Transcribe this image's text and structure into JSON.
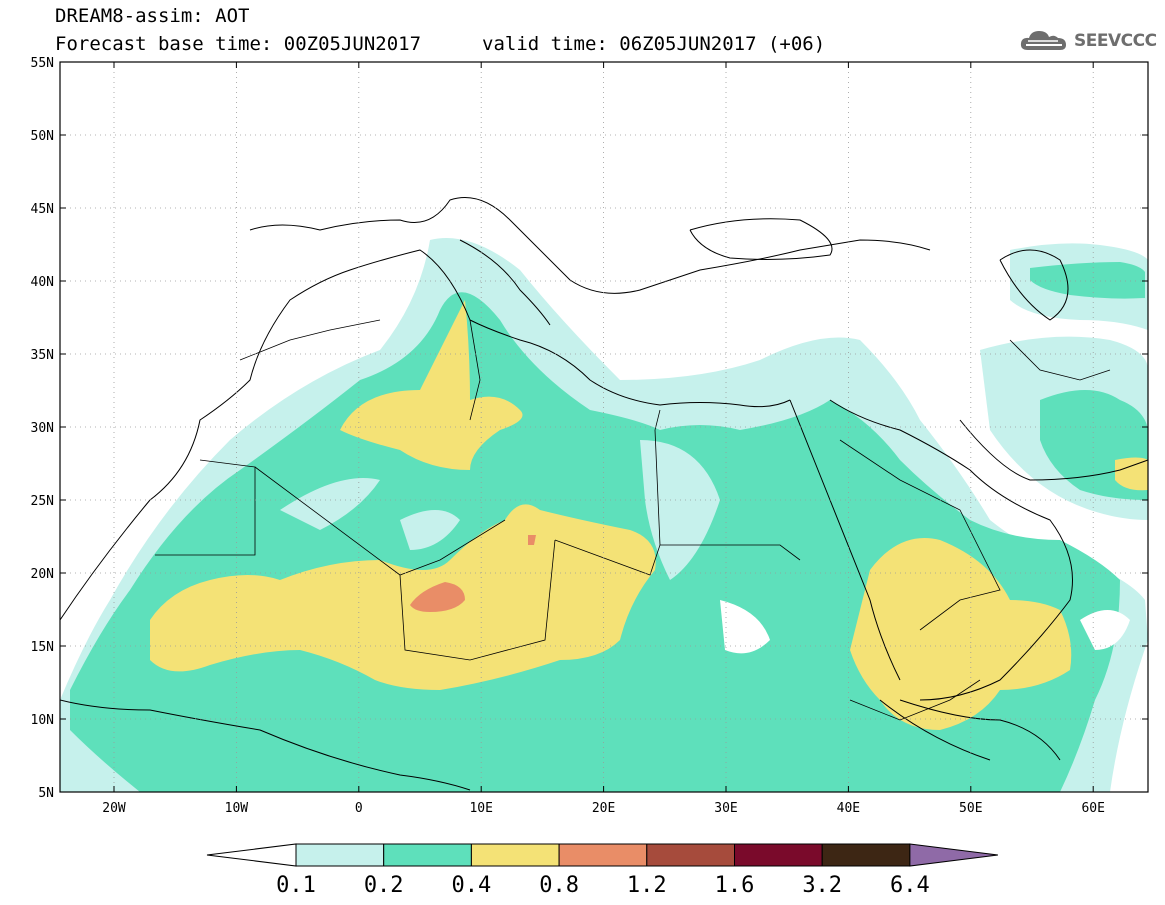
{
  "title": {
    "line1": "DREAM8-assim: AOT",
    "line2": "Forecast base time: 00Z05JUN2017",
    "valid": "valid time: 06Z05JUN2017 (+06)"
  },
  "logo": {
    "text": "SEEVCCC",
    "icon": "cloud-icon"
  },
  "axes": {
    "lat_labels": [
      "55N",
      "50N",
      "45N",
      "40N",
      "35N",
      "30N",
      "25N",
      "20N",
      "15N",
      "10N",
      "5N"
    ],
    "lon_labels": [
      "20W",
      "10W",
      "0",
      "10E",
      "20E",
      "30E",
      "40E",
      "50E",
      "60E"
    ]
  },
  "colorbar": {
    "labels": [
      "0.1",
      "0.2",
      "0.4",
      "0.8",
      "1.2",
      "1.6",
      "3.2",
      "6.4"
    ],
    "colors": [
      "#c6f1ec",
      "#5ee0bb",
      "#f4e276",
      "#e98d67",
      "#a64b3c",
      "#7a0a2b",
      "#3d2614",
      "#8f6aa7"
    ],
    "under_color": "#ffffff"
  },
  "aot_colors": {
    "level_01": "#c6f1ec",
    "level_02": "#5ee0bb",
    "level_04": "#f4e276",
    "level_08": "#e98d67"
  }
}
